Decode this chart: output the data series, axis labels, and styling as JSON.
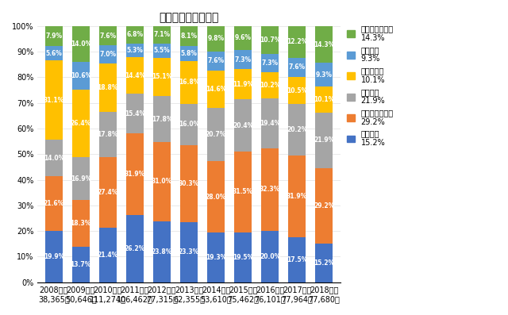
{
  "title": "融資区分（構成比）",
  "years_line1": [
    "2008年度",
    "2009年度",
    "2010年度",
    "2011年度",
    "2012年度",
    "2013年度",
    "2014年度",
    "2015年度",
    "2016年度",
    "2017年度",
    "2018年度"
  ],
  "years_line2": [
    "38,365件",
    "50,646件",
    "111,274件",
    "106,462件",
    "77,315件",
    "62,355件",
    "53,610件",
    "75,462件",
    "76,101件",
    "77,964件",
    "77,680件"
  ],
  "categories": [
    "注文住宅",
    "土地付注文住宅",
    "建売住宅",
    "マンション",
    "中古戸建",
    "中古マンション"
  ],
  "colors": [
    "#4472C4",
    "#ED7D31",
    "#A5A5A5",
    "#FFC000",
    "#5B9BD5",
    "#70AD47"
  ],
  "data": {
    "注文住宅": [
      19.9,
      13.7,
      21.4,
      26.2,
      23.8,
      23.3,
      19.3,
      19.5,
      20.0,
      17.5,
      15.2
    ],
    "土地付注文住宅": [
      21.6,
      18.3,
      27.4,
      31.9,
      31.0,
      30.3,
      28.0,
      31.5,
      32.3,
      31.9,
      29.2
    ],
    "建売住宅": [
      14.0,
      16.9,
      17.8,
      15.4,
      17.8,
      16.0,
      20.7,
      20.4,
      19.4,
      20.2,
      21.9
    ],
    "マンション": [
      31.1,
      26.4,
      18.8,
      14.4,
      15.1,
      16.8,
      14.6,
      11.9,
      10.2,
      10.5,
      10.1
    ],
    "中古戸建": [
      5.6,
      10.6,
      7.0,
      5.3,
      5.5,
      5.8,
      7.6,
      7.3,
      7.3,
      7.6,
      9.3
    ],
    "中古マンション": [
      7.9,
      14.0,
      7.6,
      6.8,
      7.1,
      8.1,
      9.8,
      9.6,
      10.7,
      12.2,
      14.3
    ]
  },
  "legend_labels": [
    "中古マンション",
    "14.3%",
    "中古戸建",
    "9.3%",
    "マンション",
    "10.1%",
    "建売住宅",
    "21.9%",
    "土地付注文住宅",
    "29.2%",
    "注文住宅",
    "15.2%"
  ],
  "label_colors": [
    "#FFFFFF",
    "#FFFFFF",
    "#FFFFFF",
    "#FFFFFF",
    "#FFFFFF",
    "#FFFFFF"
  ],
  "ylim": [
    0,
    100
  ],
  "bar_width": 0.65,
  "background_color": "#FFFFFF",
  "grid_color": "#E0E0E0",
  "title_fontsize": 10,
  "tick_fontsize": 7,
  "bar_label_fontsize": 5.5
}
